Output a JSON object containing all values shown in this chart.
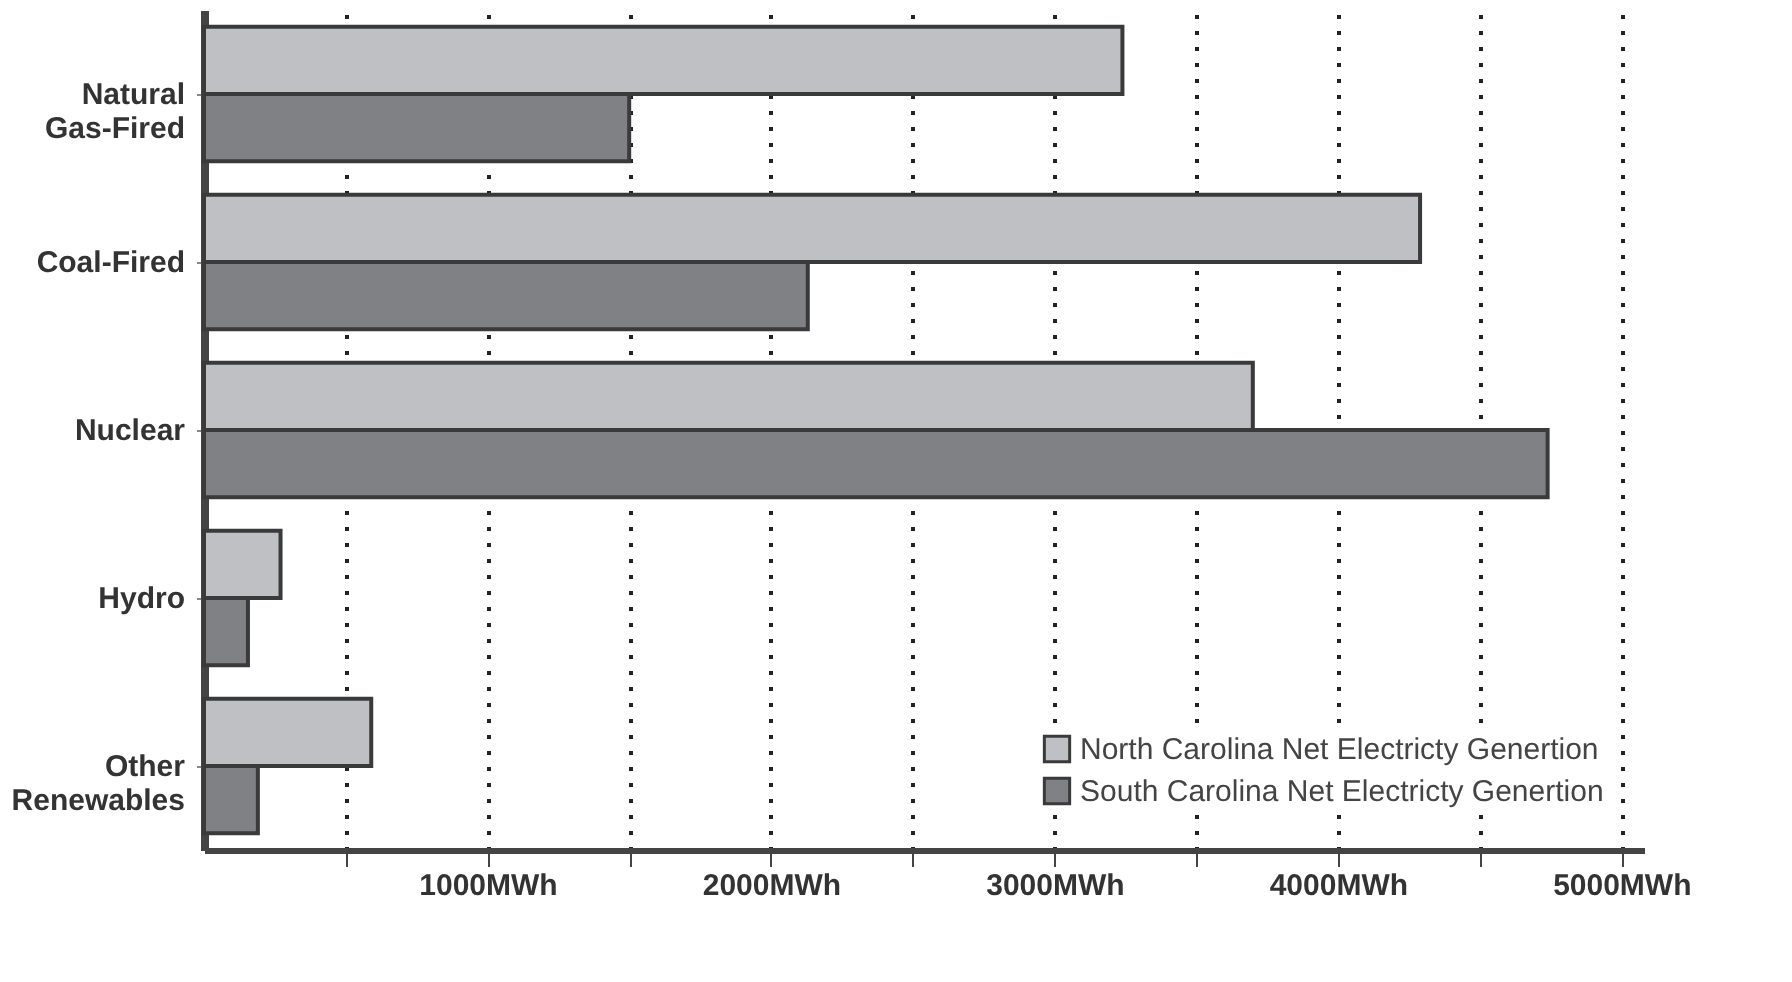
{
  "chart_data": {
    "type": "bar",
    "orientation": "horizontal",
    "categories": [
      "Natural\nGas-Fired",
      "Coal-Fired",
      "Nuclear",
      "Hydro",
      "Other\nRenewables"
    ],
    "series": [
      {
        "name": "North Carolina Net Electricty Genertion",
        "color": "#bfc0c4",
        "values": [
          3240,
          4290,
          3700,
          270,
          590
        ]
      },
      {
        "name": "South Carolina Net Electricty Genertion",
        "color": "#808185",
        "values": [
          1500,
          2130,
          4740,
          155,
          190
        ]
      }
    ],
    "xlim": [
      0,
      5080
    ],
    "xticks": [
      {
        "value": 500,
        "label": null
      },
      {
        "value": 1000,
        "label": "1000MWh"
      },
      {
        "value": 1500,
        "label": null
      },
      {
        "value": 2000,
        "label": "2000MWh"
      },
      {
        "value": 2500,
        "label": null
      },
      {
        "value": 3000,
        "label": "3000MWh"
      },
      {
        "value": 3500,
        "label": null
      },
      {
        "value": 4000,
        "label": "4000MWh"
      },
      {
        "value": 4500,
        "label": null
      },
      {
        "value": 5000,
        "label": "5000MWh"
      }
    ],
    "grid": "x",
    "legend": "bottom right"
  }
}
